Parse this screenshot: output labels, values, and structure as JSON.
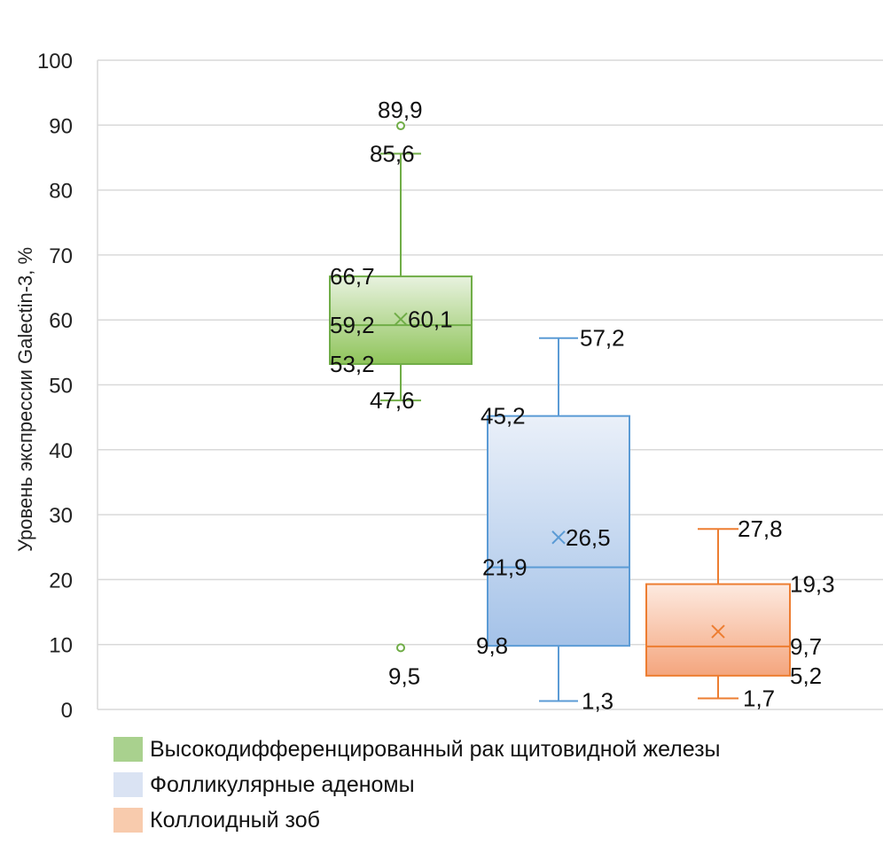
{
  "chart_data": {
    "type": "boxplot",
    "ylabel": "Уровень экспрессии Galectin-3, %",
    "ylim": [
      0,
      100
    ],
    "yticks": [
      "0",
      "10",
      "20",
      "30",
      "40",
      "50",
      "60",
      "70",
      "80",
      "90",
      "100"
    ],
    "grid": true,
    "series": [
      {
        "name": "Высокодифференцированный рак щитовидной железы",
        "color": "#70ad47",
        "fill_light": "#e8f2df",
        "fill_dark": "#8fc45a",
        "legend_color": "#a9d18e",
        "min": 47.6,
        "q1": 53.2,
        "median": 59.2,
        "mean": 60.1,
        "q3": 66.7,
        "max": 85.6,
        "outliers": [
          89.9,
          9.5
        ],
        "labels": {
          "min": "47,6",
          "q1": "53,2",
          "median": "59,2",
          "mean": "60,1",
          "q3": "66,7",
          "max": "85,6",
          "outliers": [
            "89,9",
            "9,5"
          ]
        }
      },
      {
        "name": "Фолликулярные аденомы",
        "color": "#5b9bd5",
        "fill_light": "#eaf0f9",
        "fill_dark": "#a4c2e8",
        "legend_color": "#dae3f3",
        "min": 1.3,
        "q1": 9.8,
        "median": 21.9,
        "mean": 26.5,
        "q3": 45.2,
        "max": 57.2,
        "outliers": [],
        "labels": {
          "min": "1,3",
          "q1": "9,8",
          "median": "21,9",
          "mean": "26,5",
          "q3": "45,2",
          "max": "57,2",
          "outliers": []
        }
      },
      {
        "name": "Коллоидный зоб",
        "color": "#ed7d31",
        "fill_light": "#fdeae0",
        "fill_dark": "#f4a57d",
        "legend_color": "#f8cbad",
        "min": 1.7,
        "q1": 5.2,
        "median": 9.7,
        "mean": 12.0,
        "q3": 19.3,
        "max": 27.8,
        "outliers": [],
        "labels": {
          "min": "1,7",
          "q1": "5,2",
          "median": "9,7",
          "q3": "19,3",
          "max": "27,8",
          "outliers": []
        }
      }
    ]
  }
}
